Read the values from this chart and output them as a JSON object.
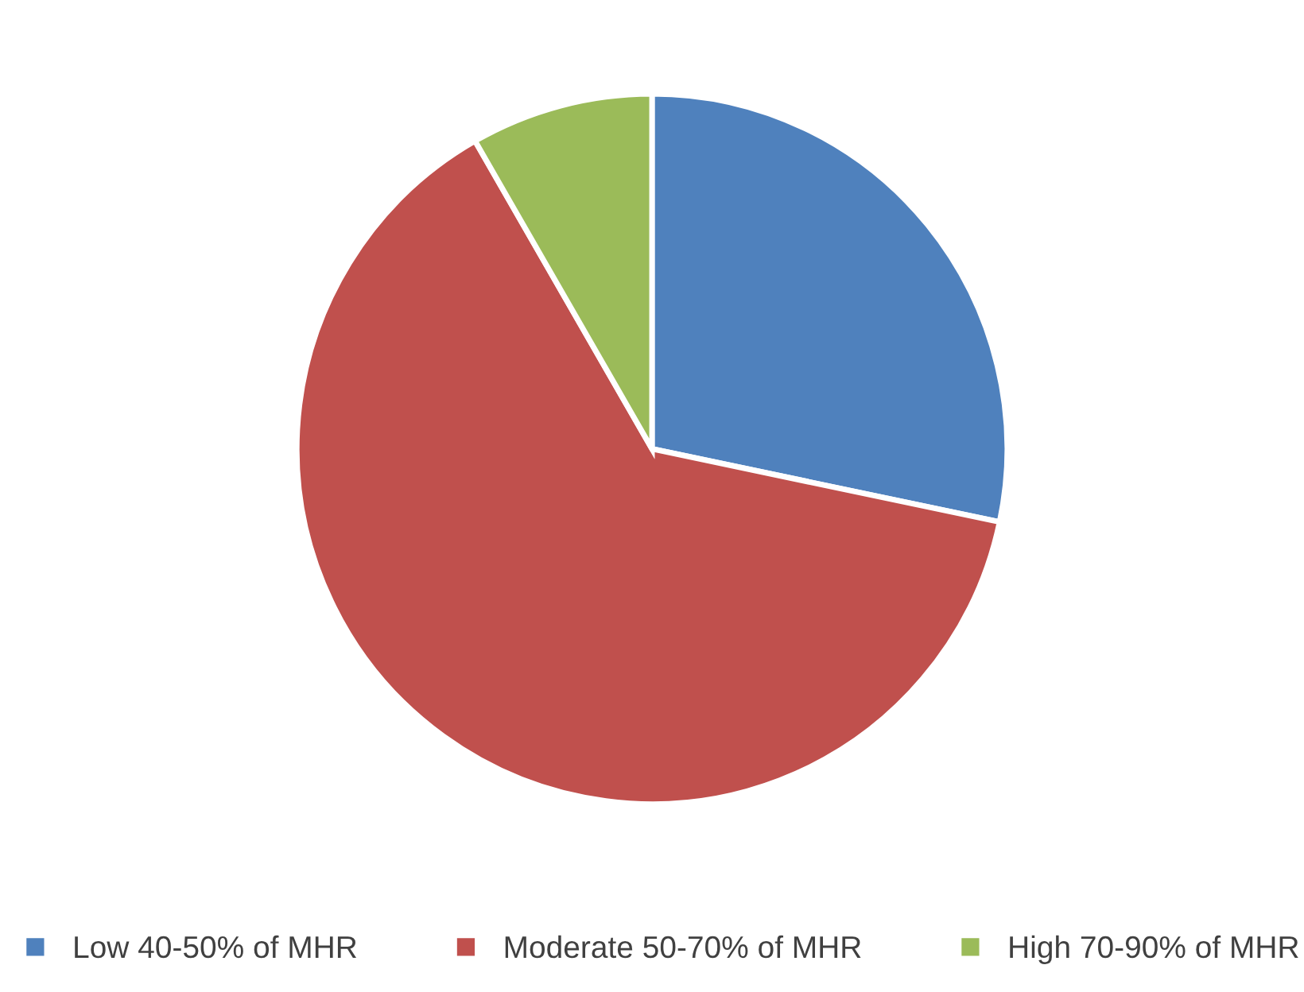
{
  "chart_data": {
    "type": "pie",
    "categories": [
      "Low 40-50% of MHR",
      "Moderate 50-70% of MHR",
      "High 70-90% of MHR"
    ],
    "values": [
      28.3,
      63.4,
      8.3
    ],
    "colors": [
      "#4f81bd",
      "#c0504d",
      "#9bbb59"
    ],
    "legend": "bottom"
  }
}
